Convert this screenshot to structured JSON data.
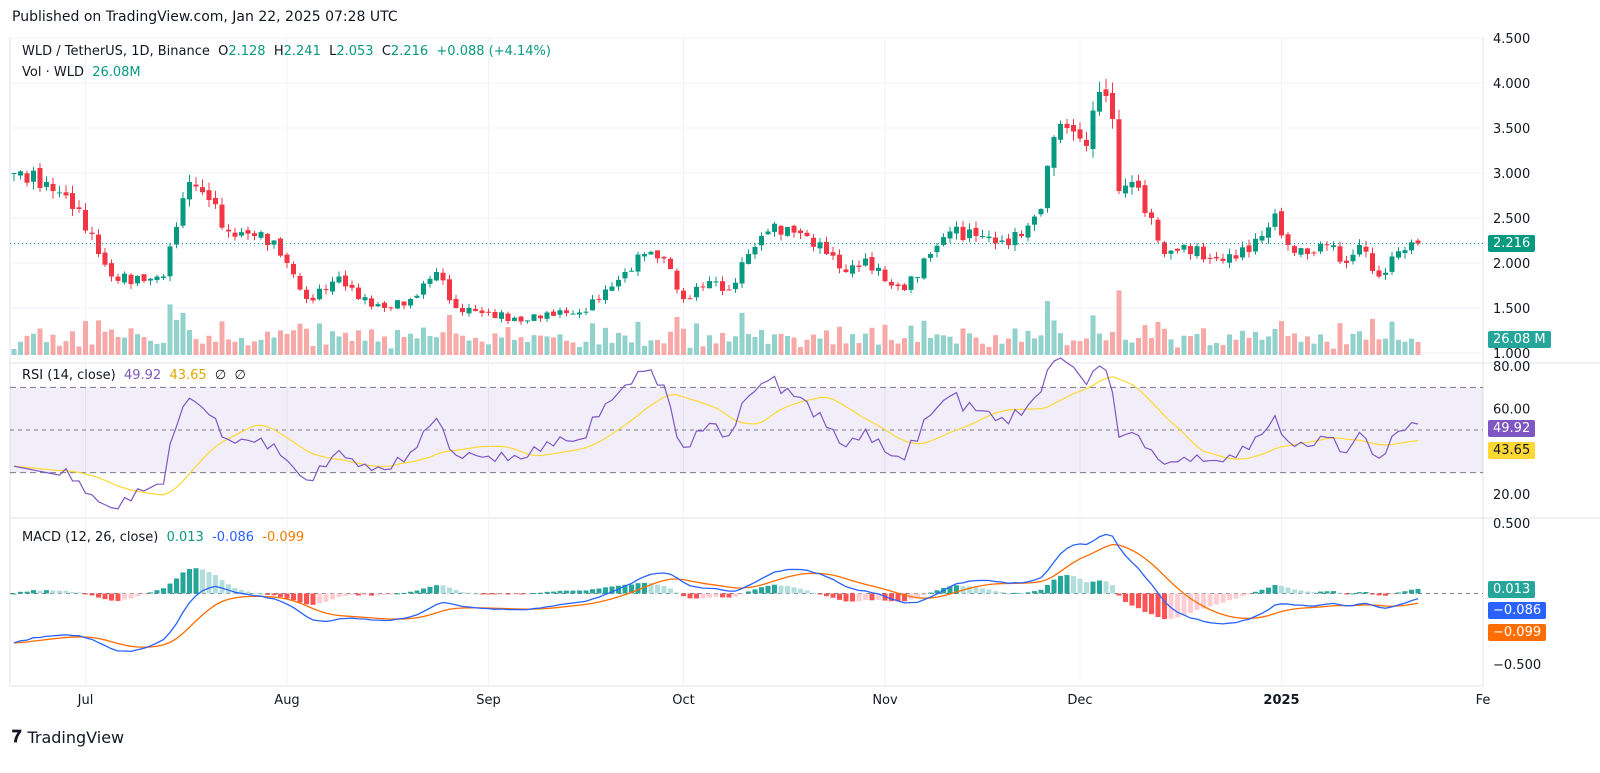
{
  "published": "Published on TradingView.com, Jan 22, 2025 07:28 UTC",
  "legend": {
    "symbol": "WLD / TetherUS, 1D, Binance",
    "o_label": "O",
    "o": "2.128",
    "h_label": "H",
    "h": "2.241",
    "l_label": "L",
    "l": "2.053",
    "c_label": "C",
    "c": "2.216",
    "change": "+0.088 (+4.14%)",
    "vol_label": "Vol · WLD",
    "vol": "26.08M"
  },
  "rsi_legend": {
    "label": "RSI (14, close)",
    "rsi": "49.92",
    "ma": "43.65",
    "x1": "∅",
    "x2": "∅"
  },
  "macd_legend": {
    "label": "MACD (12, 26, close)",
    "hist": "0.013",
    "macd": "-0.086",
    "signal": "-0.099"
  },
  "tags": {
    "price": "2.216",
    "vol": "26.08 M",
    "rsi": "49.92",
    "rsi_ma": "43.65",
    "hist": "0.013",
    "macd": "−0.086",
    "signal": "−0.099"
  },
  "logo": "TradingView",
  "colors": {
    "up": "#089981",
    "down": "#f23645",
    "rsi": "#7e57c2",
    "rsi_ma": "#fdd835",
    "macd": "#2962ff",
    "signal": "#ff6d00"
  },
  "chart_data": {
    "type": "candlestick",
    "title": "WLD / TetherUS, 1D, Binance",
    "x_ticks": [
      {
        "day": 11,
        "label": "Jul"
      },
      {
        "day": 42,
        "label": "Aug"
      },
      {
        "day": 73,
        "label": "Sep"
      },
      {
        "day": 103,
        "label": "Oct"
      },
      {
        "day": 134,
        "label": "Nov"
      },
      {
        "day": 164,
        "label": "Dec"
      },
      {
        "day": 195,
        "label": "2025"
      },
      {
        "day": 226,
        "label": "Fe"
      }
    ],
    "price_ticks": [
      "4.500",
      "4.000",
      "3.500",
      "3.000",
      "2.500",
      "2.000",
      "1.500",
      "1.000"
    ],
    "price_range": [
      1.0,
      4.5
    ],
    "rsi_ticks": [
      "80.00",
      "60.00",
      "20.00"
    ],
    "rsi_bands": [
      70,
      50,
      30
    ],
    "macd_ticks": [
      "0.500",
      "-0.500"
    ],
    "close_keypoints_day_value": [
      [
        0,
        3.0
      ],
      [
        5,
        2.9
      ],
      [
        10,
        2.6
      ],
      [
        13,
        2.1
      ],
      [
        15,
        1.85
      ],
      [
        20,
        1.8
      ],
      [
        23,
        1.85
      ],
      [
        25,
        2.4
      ],
      [
        27,
        2.9
      ],
      [
        30,
        2.7
      ],
      [
        33,
        2.35
      ],
      [
        37,
        2.3
      ],
      [
        40,
        2.25
      ],
      [
        42,
        2.0
      ],
      [
        45,
        1.6
      ],
      [
        48,
        1.7
      ],
      [
        50,
        1.85
      ],
      [
        53,
        1.6
      ],
      [
        57,
        1.5
      ],
      [
        61,
        1.6
      ],
      [
        65,
        1.9
      ],
      [
        68,
        1.5
      ],
      [
        73,
        1.45
      ],
      [
        78,
        1.35
      ],
      [
        82,
        1.45
      ],
      [
        87,
        1.45
      ],
      [
        90,
        1.6
      ],
      [
        94,
        1.9
      ],
      [
        97,
        2.1
      ],
      [
        100,
        2.05
      ],
      [
        103,
        1.6
      ],
      [
        107,
        1.8
      ],
      [
        110,
        1.7
      ],
      [
        113,
        2.1
      ],
      [
        116,
        2.35
      ],
      [
        119,
        2.4
      ],
      [
        122,
        2.3
      ],
      [
        125,
        2.1
      ],
      [
        128,
        1.9
      ],
      [
        131,
        2.05
      ],
      [
        135,
        1.75
      ],
      [
        137,
        1.7
      ],
      [
        141,
        2.1
      ],
      [
        144,
        2.35
      ],
      [
        148,
        2.3
      ],
      [
        152,
        2.25
      ],
      [
        155,
        2.3
      ],
      [
        158,
        2.6
      ],
      [
        160,
        3.4
      ],
      [
        162,
        3.5
      ],
      [
        165,
        3.3
      ],
      [
        167,
        3.9
      ],
      [
        169,
        3.6
      ],
      [
        170,
        2.8
      ],
      [
        172,
        2.9
      ],
      [
        175,
        2.5
      ],
      [
        177,
        2.1
      ],
      [
        180,
        2.2
      ],
      [
        184,
        2.05
      ],
      [
        188,
        2.05
      ],
      [
        192,
        2.3
      ],
      [
        194,
        2.55
      ],
      [
        196,
        2.2
      ],
      [
        199,
        2.1
      ],
      [
        202,
        2.2
      ],
      [
        205,
        2.0
      ],
      [
        207,
        2.2
      ],
      [
        210,
        1.85
      ],
      [
        213,
        2.13
      ],
      [
        216,
        2.216
      ]
    ]
  }
}
